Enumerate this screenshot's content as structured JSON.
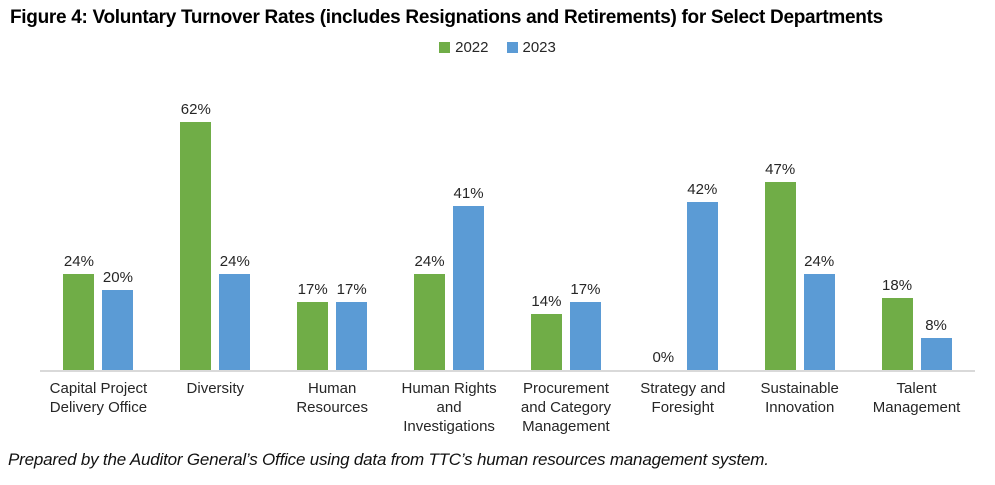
{
  "title": "Figure 4: Voluntary Turnover Rates (includes Resignations and Retirements) for Select Departments",
  "footer": "Prepared by the Auditor General’s Office using data from TTC’s human resources management system.",
  "legend": {
    "items": [
      {
        "label": "2022",
        "color": "#70AD47"
      },
      {
        "label": "2023",
        "color": "#5B9BD5"
      }
    ]
  },
  "colors": {
    "series_2022": "#70AD47",
    "series_2023": "#5B9BD5",
    "axis_line": "#d9d9d9",
    "text": "#262626"
  },
  "chart_data": {
    "type": "bar",
    "title": "Figure 4: Voluntary Turnover Rates (includes Resignations and Retirements) for Select Departments",
    "categories": [
      "Capital Project\nDelivery Office",
      "Diversity",
      "Human\nResources",
      "Human Rights\nand\nInvestigations",
      "Procurement\nand Category\nManagement",
      "Strategy and\nForesight",
      "Sustainable\nInnovation",
      "Talent\nManagement"
    ],
    "series": [
      {
        "name": "2022",
        "color": "#70AD47",
        "values": [
          24,
          62,
          17,
          24,
          14,
          0,
          47,
          18
        ]
      },
      {
        "name": "2023",
        "color": "#5B9BD5",
        "values": [
          20,
          24,
          17,
          41,
          17,
          42,
          24,
          8
        ]
      }
    ],
    "value_label_format": "{v}%",
    "xlabel": "",
    "ylabel": "",
    "ylim": [
      0,
      70
    ],
    "grid": false,
    "y_axis_visible": false,
    "legend_position": "top-center",
    "data_labels": true
  }
}
